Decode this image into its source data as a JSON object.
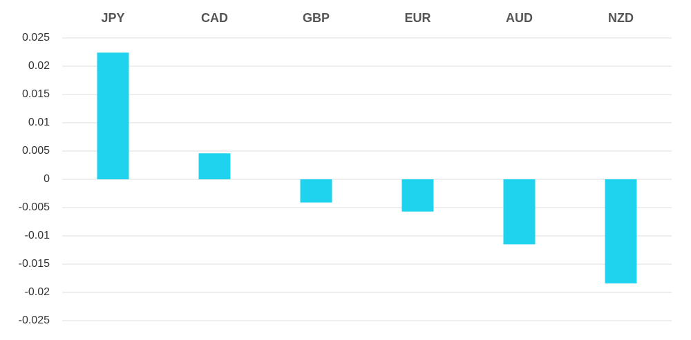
{
  "chart_data": {
    "type": "bar",
    "categories": [
      "JPY",
      "CAD",
      "GBP",
      "EUR",
      "AUD",
      "NZD"
    ],
    "values": [
      0.0224,
      0.0046,
      -0.0041,
      -0.0057,
      -0.0115,
      -0.0184
    ],
    "color": "#1fd3ef",
    "ylim": [
      -0.025,
      0.025
    ],
    "yticks": [
      0.025,
      0.02,
      0.015,
      0.01,
      0.005,
      0,
      -0.005,
      -0.01,
      -0.015,
      -0.02,
      -0.025
    ],
    "grid": true
  }
}
